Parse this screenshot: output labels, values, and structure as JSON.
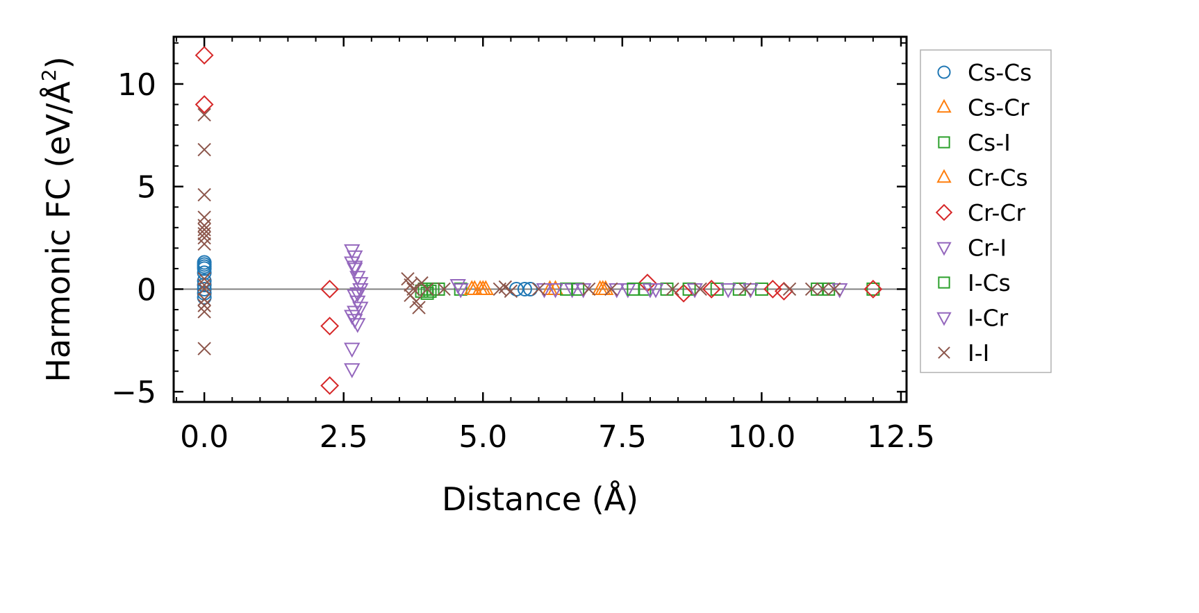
{
  "chart_data": {
    "type": "scatter",
    "title": "",
    "xlabel": "Distance (Å)",
    "ylabel": "Harmonic FC (eV/Å²)",
    "ylabel_parts": {
      "main": "Harmonic FC (eV/Å",
      "sup": "2",
      "close": ")"
    },
    "xlim": [
      -0.55,
      12.6
    ],
    "ylim": [
      -5.5,
      12.3
    ],
    "x_ticks": [
      0.0,
      2.5,
      5.0,
      7.5,
      10.0,
      12.5
    ],
    "x_tick_labels": [
      "0.0",
      "2.5",
      "5.0",
      "7.5",
      "10.0",
      "12.5"
    ],
    "y_ticks": [
      -5,
      0,
      5,
      10
    ],
    "y_tick_labels": [
      "−5",
      "0",
      "5",
      "10"
    ],
    "zero_line": true,
    "grid": false,
    "legend_position": "right-outside",
    "series": [
      {
        "name": "Cs-Cs",
        "marker": "circle",
        "color": "#1f77b4",
        "points": [
          [
            0,
            1.3
          ],
          [
            0,
            1.2
          ],
          [
            0,
            1.1
          ],
          [
            0,
            1.0
          ],
          [
            0,
            0.8
          ],
          [
            0,
            0.4
          ],
          [
            0,
            0.2
          ],
          [
            0,
            0.0
          ],
          [
            0,
            -0.2
          ],
          [
            0,
            -0.4
          ],
          [
            5.6,
            0.0
          ],
          [
            5.75,
            0.0
          ],
          [
            5.85,
            0.0
          ]
        ]
      },
      {
        "name": "Cs-Cr",
        "marker": "triangle-up",
        "color": "#ff7f0e",
        "points": [
          [
            4.85,
            0.0
          ],
          [
            4.95,
            0.0
          ],
          [
            5.05,
            0.0
          ],
          [
            6.3,
            0.0
          ],
          [
            7.1,
            0.0
          ],
          [
            7.2,
            0.0
          ]
        ]
      },
      {
        "name": "Cs-I",
        "marker": "square",
        "color": "#2ca02c",
        "points": [
          [
            3.9,
            -0.1
          ],
          [
            4.0,
            -0.2
          ],
          [
            4.1,
            0.0
          ],
          [
            4.2,
            0.0
          ],
          [
            4.6,
            0.0
          ],
          [
            6.5,
            0.0
          ],
          [
            7.9,
            0.0
          ],
          [
            8.3,
            0.0
          ],
          [
            9.2,
            0.0
          ],
          [
            10.0,
            0.0
          ],
          [
            11.2,
            0.0
          ],
          [
            12.0,
            0.0
          ]
        ]
      },
      {
        "name": "Cr-Cs",
        "marker": "triangle-up",
        "color": "#ff7f0e",
        "points": [
          [
            4.8,
            0.0
          ],
          [
            5.0,
            0.0
          ],
          [
            6.2,
            0.0
          ],
          [
            7.15,
            0.0
          ]
        ]
      },
      {
        "name": "Cr-Cr",
        "marker": "diamond",
        "color": "#d62728",
        "points": [
          [
            0,
            11.4
          ],
          [
            0,
            9.0
          ],
          [
            2.25,
            0.0
          ],
          [
            2.25,
            -1.8
          ],
          [
            2.25,
            -4.7
          ],
          [
            7.95,
            0.3
          ],
          [
            8.6,
            -0.2
          ],
          [
            9.1,
            0.0
          ],
          [
            10.2,
            0.0
          ],
          [
            10.4,
            -0.1
          ],
          [
            12.0,
            0.0
          ]
        ]
      },
      {
        "name": "Cr-I",
        "marker": "triangle-down",
        "color": "#9467bd",
        "points": [
          [
            2.65,
            1.9
          ],
          [
            2.7,
            1.6
          ],
          [
            2.65,
            1.3
          ],
          [
            2.7,
            1.0
          ],
          [
            2.75,
            0.6
          ],
          [
            2.8,
            0.3
          ],
          [
            2.8,
            0.0
          ],
          [
            2.7,
            -0.3
          ],
          [
            2.75,
            -0.6
          ],
          [
            2.8,
            -0.9
          ],
          [
            2.7,
            -1.1
          ],
          [
            2.65,
            -1.3
          ],
          [
            2.7,
            -1.5
          ],
          [
            2.75,
            -1.7
          ],
          [
            2.65,
            -2.9
          ],
          [
            2.65,
            -3.9
          ],
          [
            4.55,
            0.2
          ],
          [
            4.6,
            0.0
          ],
          [
            6.1,
            0.0
          ],
          [
            6.3,
            0.0
          ],
          [
            6.6,
            0.0
          ],
          [
            7.6,
            0.0
          ],
          [
            8.0,
            0.0
          ]
        ]
      },
      {
        "name": "I-Cs",
        "marker": "square",
        "color": "#2ca02c",
        "points": [
          [
            3.95,
            0.0
          ],
          [
            4.05,
            -0.1
          ],
          [
            6.7,
            0.0
          ],
          [
            7.7,
            0.0
          ],
          [
            8.7,
            0.0
          ],
          [
            9.6,
            0.0
          ],
          [
            11.0,
            0.0
          ]
        ]
      },
      {
        "name": "I-Cr",
        "marker": "triangle-down",
        "color": "#9467bd",
        "points": [
          [
            2.7,
            1.1
          ],
          [
            2.75,
            -0.2
          ],
          [
            6.8,
            0.0
          ],
          [
            7.4,
            0.0
          ],
          [
            8.1,
            0.0
          ],
          [
            8.8,
            0.0
          ],
          [
            9.4,
            0.0
          ],
          [
            9.8,
            0.0
          ],
          [
            11.4,
            0.0
          ]
        ]
      },
      {
        "name": "I-I",
        "marker": "x",
        "color": "#8c564b",
        "points": [
          [
            0,
            8.5
          ],
          [
            0,
            6.8
          ],
          [
            0,
            4.6
          ],
          [
            0,
            3.5
          ],
          [
            0,
            3.1
          ],
          [
            0,
            2.9
          ],
          [
            0,
            2.7
          ],
          [
            0,
            2.5
          ],
          [
            0,
            2.2
          ],
          [
            0,
            0.5
          ],
          [
            0,
            0.2
          ],
          [
            0,
            0.0
          ],
          [
            0,
            -0.5
          ],
          [
            0,
            -0.8
          ],
          [
            0,
            -1.1
          ],
          [
            0,
            -2.9
          ],
          [
            3.65,
            0.5
          ],
          [
            3.7,
            0.2
          ],
          [
            3.75,
            0.0
          ],
          [
            3.7,
            -0.3
          ],
          [
            3.8,
            -0.6
          ],
          [
            3.85,
            -0.9
          ],
          [
            3.9,
            0.3
          ],
          [
            4.0,
            0.0
          ],
          [
            4.3,
            0.0
          ],
          [
            5.3,
            0.0
          ],
          [
            5.4,
            0.1
          ],
          [
            5.5,
            -0.1
          ],
          [
            6.0,
            0.0
          ],
          [
            6.9,
            0.0
          ],
          [
            7.3,
            0.0
          ],
          [
            8.4,
            0.0
          ],
          [
            8.9,
            0.0
          ],
          [
            9.7,
            0.0
          ],
          [
            10.5,
            0.0
          ],
          [
            10.9,
            0.0
          ],
          [
            11.1,
            0.0
          ],
          [
            11.3,
            0.0
          ]
        ]
      }
    ]
  }
}
